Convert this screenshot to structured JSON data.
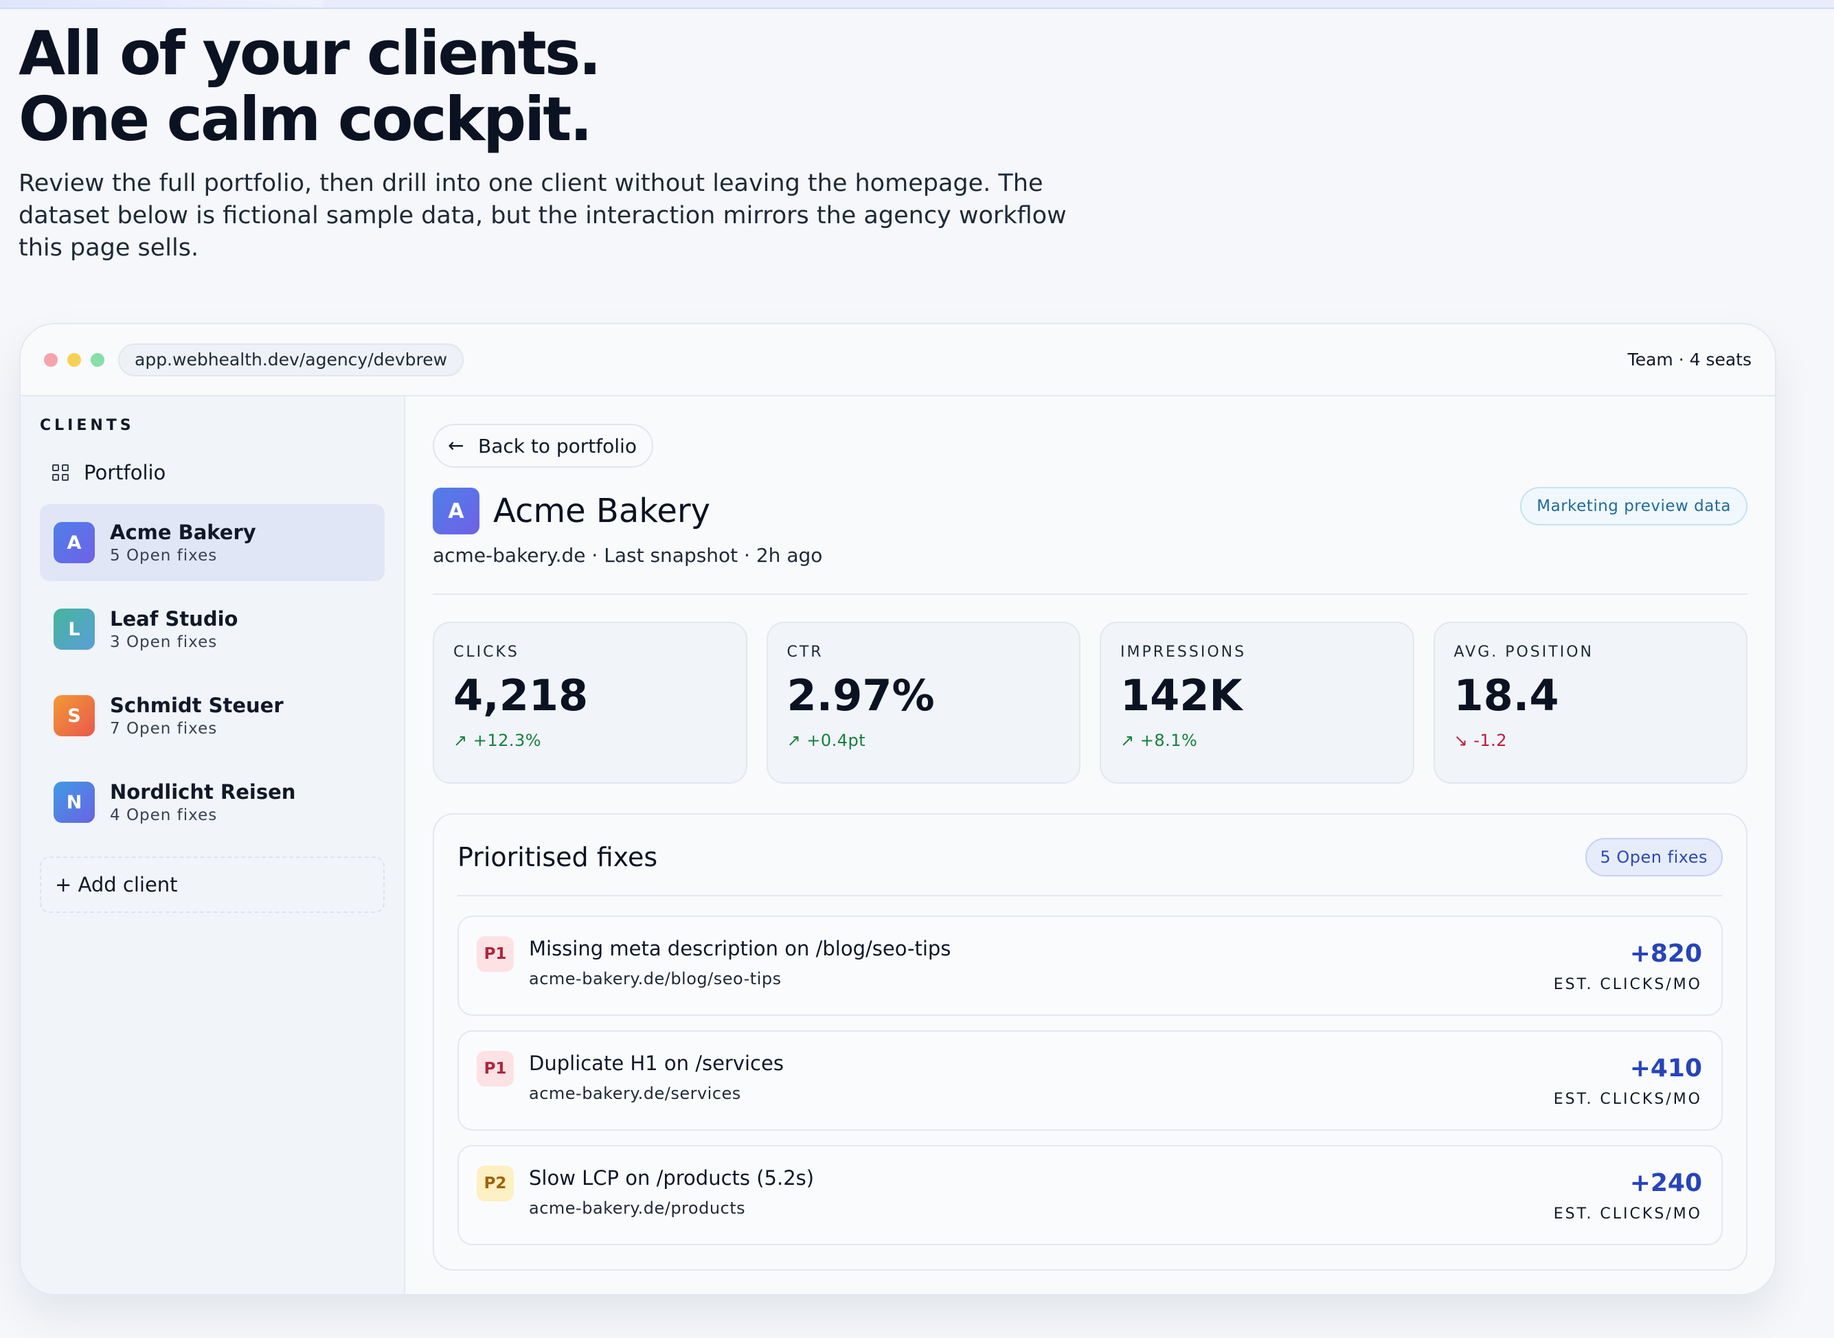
{
  "hero": {
    "title_line1": "All of your clients.",
    "title_line2": "One calm cockpit.",
    "description": "Review the full portfolio, then drill into one client without leaving the homepage. The dataset below is fictional sample data, but the interaction mirrors the agency workflow this page sells."
  },
  "window": {
    "url": "app.webhealth.dev/agency/devbrew",
    "team_label": "Team · 4 seats"
  },
  "sidebar": {
    "heading": "CLIENTS",
    "portfolio_label": "Portfolio",
    "portfolio_icon": "grid-icon",
    "clients": [
      {
        "initial": "A",
        "name": "Acme Bakery",
        "fixes": "5 Open fixes",
        "active": true,
        "color_from": "#4f7fe9",
        "color_to": "#6f61e6"
      },
      {
        "initial": "L",
        "name": "Leaf Studio",
        "fixes": "3 Open fixes",
        "active": false,
        "color_from": "#45b59c",
        "color_to": "#5a9ed8"
      },
      {
        "initial": "S",
        "name": "Schmidt Steuer",
        "fixes": "7 Open fixes",
        "active": false,
        "color_from": "#f29a34",
        "color_to": "#e9584e"
      },
      {
        "initial": "N",
        "name": "Nordlicht Reisen",
        "fixes": "4 Open fixes",
        "active": false,
        "color_from": "#3f9be5",
        "color_to": "#6a62e3"
      }
    ],
    "add_client": "+ Add client"
  },
  "detail": {
    "back_label": "Back to portfolio",
    "back_icon": "arrow-left-icon",
    "client_initial": "A",
    "client_name": "Acme Bakery",
    "subtitle": "acme-bakery.de · Last snapshot · 2h ago",
    "preview_badge": "Marketing preview data",
    "stats": [
      {
        "label": "CLICKS",
        "value": "4,218",
        "delta": "+12.3%",
        "trend": "up"
      },
      {
        "label": "CTR",
        "value": "2.97%",
        "delta": "+0.4pt",
        "trend": "up"
      },
      {
        "label": "IMPRESSIONS",
        "value": "142K",
        "delta": "+8.1%",
        "trend": "up"
      },
      {
        "label": "AVG. POSITION",
        "value": "18.4",
        "delta": "-1.2",
        "trend": "down"
      }
    ],
    "fixes": {
      "title": "Prioritised fixes",
      "count_badge": "5 Open fixes",
      "items": [
        {
          "priority": "P1",
          "title": "Missing meta description on /blog/seo-tips",
          "url": "acme-bakery.de/blog/seo-tips",
          "value": "+820",
          "value_label": "EST. CLICKS/MO"
        },
        {
          "priority": "P1",
          "title": "Duplicate H1 on /services",
          "url": "acme-bakery.de/services",
          "value": "+410",
          "value_label": "EST. CLICKS/MO"
        },
        {
          "priority": "P2",
          "title": "Slow LCP on /products (5.2s)",
          "url": "acme-bakery.de/products",
          "value": "+240",
          "value_label": "EST. CLICKS/MO"
        }
      ]
    }
  },
  "colors": {
    "accent": "#2744b8",
    "positive": "#15803d",
    "negative": "#c0193b",
    "active_bg": "#e1e6f6"
  }
}
